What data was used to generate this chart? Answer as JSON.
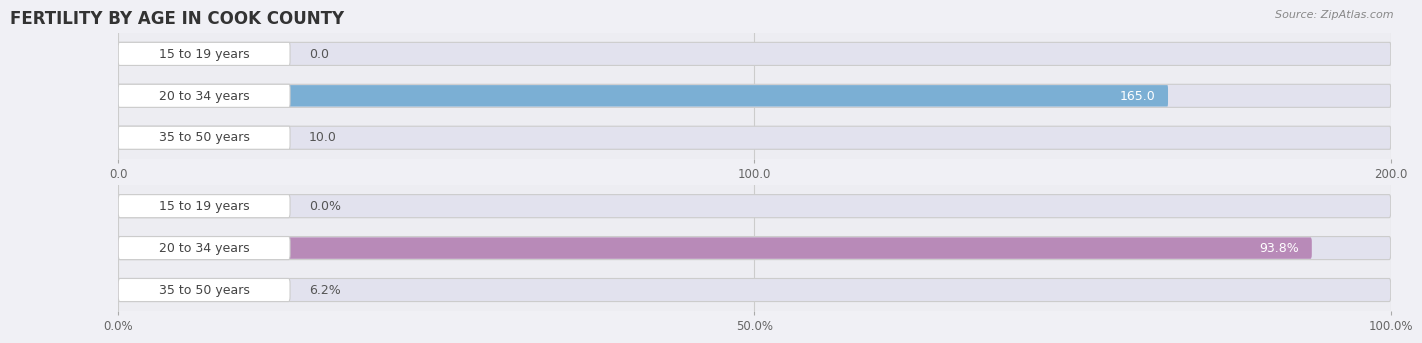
{
  "title": "FERTILITY BY AGE IN COOK COUNTY",
  "source": "Source: ZipAtlas.com",
  "top_chart": {
    "categories": [
      "15 to 19 years",
      "20 to 34 years",
      "35 to 50 years"
    ],
    "values": [
      0.0,
      165.0,
      10.0
    ],
    "xlim": [
      0,
      200
    ],
    "xticks": [
      0.0,
      100.0,
      200.0
    ],
    "xtick_labels": [
      "0.0",
      "100.0",
      "200.0"
    ],
    "bar_color": "#7bafd4",
    "bg_color": "#ededf2",
    "bar_bg_color": "#e2e2ee",
    "label_inside_color": "#ffffff",
    "label_outside_color": "#555555"
  },
  "bottom_chart": {
    "categories": [
      "15 to 19 years",
      "20 to 34 years",
      "35 to 50 years"
    ],
    "values": [
      0.0,
      93.8,
      6.2
    ],
    "xlim": [
      0,
      100
    ],
    "xticks": [
      0.0,
      50.0,
      100.0
    ],
    "xtick_labels": [
      "0.0%",
      "50.0%",
      "100.0%"
    ],
    "bar_color": "#b88ab8",
    "bg_color": "#ededf2",
    "bar_bg_color": "#e2e2ee",
    "label_inside_color": "#ffffff",
    "label_outside_color": "#555555"
  },
  "label_fontsize": 9,
  "tick_fontsize": 8.5,
  "title_fontsize": 12,
  "source_fontsize": 8,
  "category_label_fontsize": 9,
  "bar_height": 0.55
}
